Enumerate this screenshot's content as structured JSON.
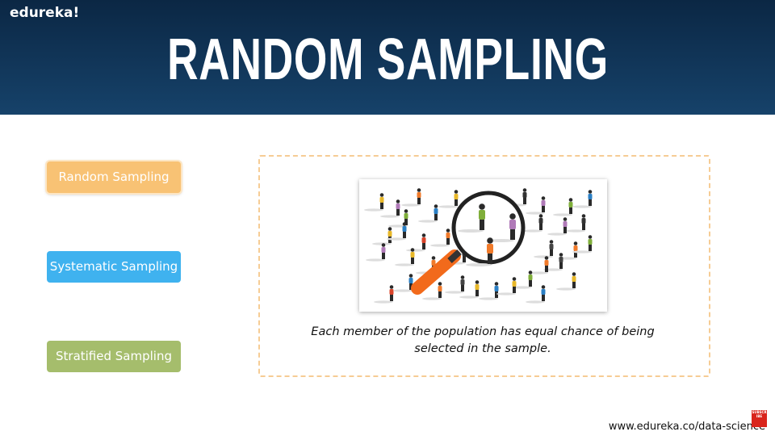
{
  "header": {
    "brand": "edureka!",
    "title": "RANDOM SAMPLING"
  },
  "menu": [
    "Random Sampling",
    "Systematic Sampling",
    "Stratified Sampling"
  ],
  "caption": "Each member of the population has equal chance of being selected in the sample.",
  "footer": {
    "url": "www.edureka.co/data-science",
    "badge": "SUBSCRIBE"
  }
}
